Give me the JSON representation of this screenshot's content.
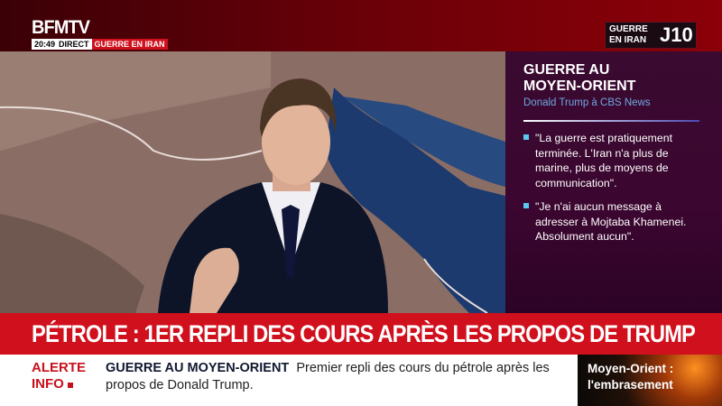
{
  "channel": {
    "logo": "BFMTV",
    "time": "20:49",
    "live_label": "DIRECT",
    "topic": "GUERRE EN IRAN"
  },
  "day_badge": {
    "label_line1": "GUERRE",
    "label_line2": "EN IRAN",
    "day": "J10"
  },
  "panel": {
    "title_line1": "GUERRE AU",
    "title_line2": "MOYEN-ORIENT",
    "subtitle": "Donald Trump à CBS News",
    "quotes": [
      "\"La guerre est pratiquement terminée. L'Iran n'a plus de marine, plus de moyens de communication\".",
      "\"Je n'ai aucun message à adresser à Mojtaba Khamenei. Absolument aucun\"."
    ]
  },
  "headline": "PÉTROLE : 1ER REPLI DES COURS APRÈS LES PROPOS DE TRUMP",
  "ticker": {
    "alert_line1": "ALERTE",
    "alert_line2": "INFO",
    "topic": "GUERRE AU MOYEN-ORIENT",
    "text": "Premier repli des cours du pétrole après les propos de Donald Trump."
  },
  "promo": {
    "line1": "Moyen-Orient :",
    "line2": "l'embrasement"
  },
  "colors": {
    "brand_red": "#d0101c",
    "panel_bg": "#3a0a30",
    "bullet": "#5ac8f0",
    "subtitle": "#6fa8e0"
  }
}
